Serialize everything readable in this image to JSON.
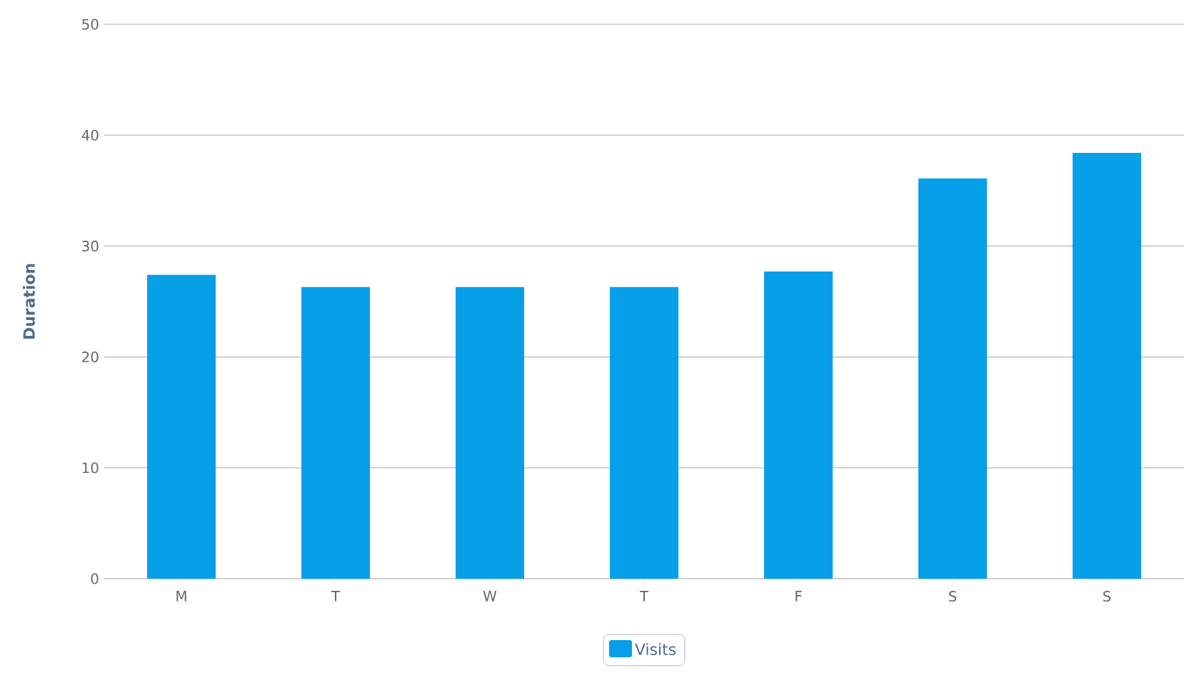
{
  "chart_data": {
    "type": "bar",
    "ylabel": "Duration",
    "categories": [
      "M",
      "T",
      "W",
      "T",
      "F",
      "S",
      "S"
    ],
    "series": [
      {
        "name": "Visits",
        "color": "#07a0e8",
        "values": [
          27.4,
          26.3,
          26.3,
          26.3,
          27.7,
          36.1,
          38.4
        ]
      }
    ],
    "ylim": [
      0,
      50
    ],
    "yticks": [
      0,
      10,
      20,
      30,
      40,
      50
    ],
    "grid": "y",
    "legend": "bottom"
  }
}
